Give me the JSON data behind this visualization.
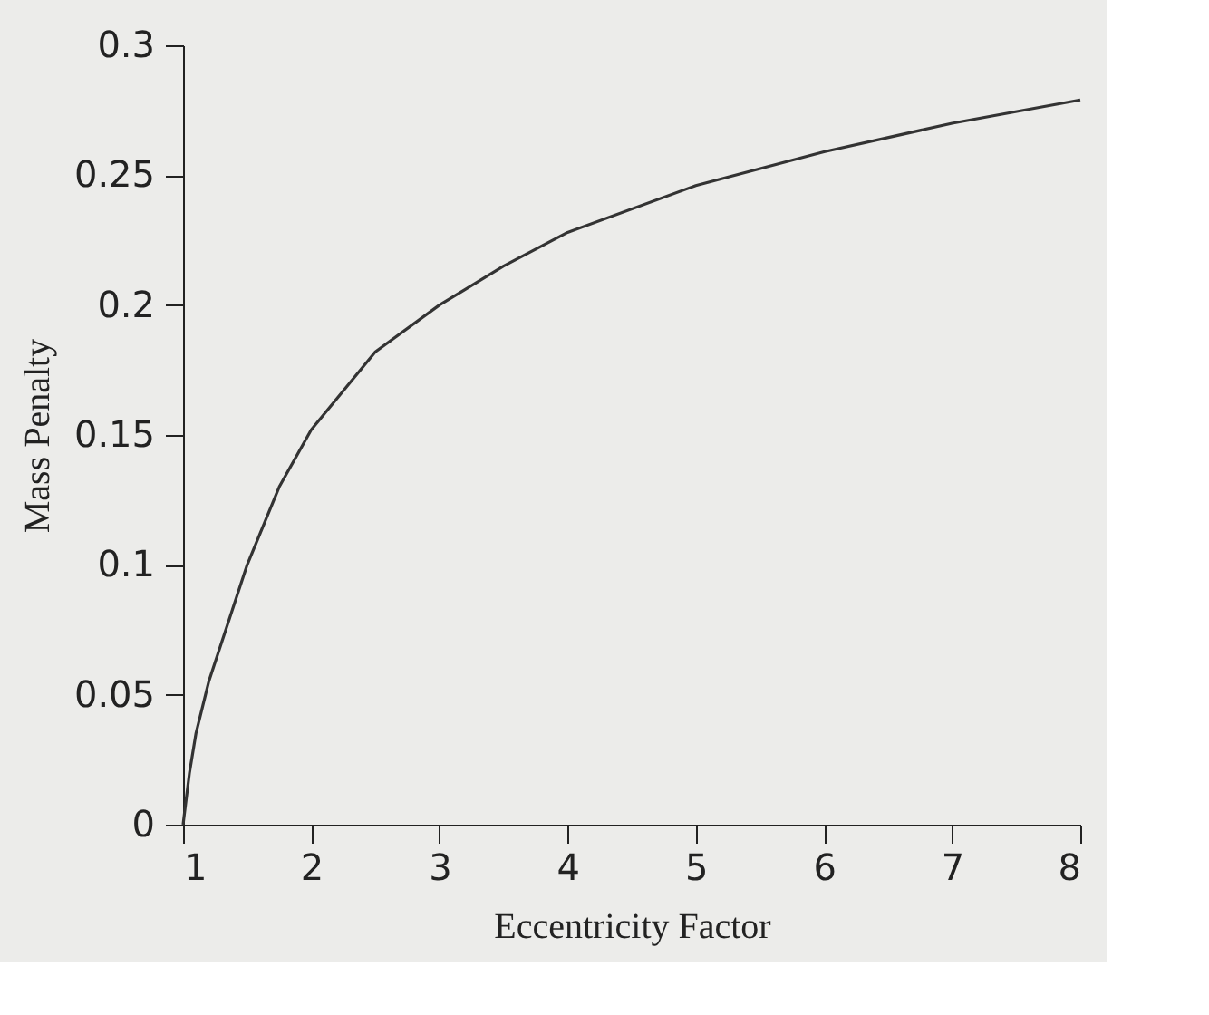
{
  "chart_data": {
    "type": "line",
    "xlabel": "Eccentricity Factor",
    "ylabel": "Mass Penalty",
    "x": [
      1,
      1.05,
      1.1,
      1.2,
      1.3,
      1.5,
      1.75,
      2,
      2.5,
      3,
      3.5,
      4,
      5,
      6,
      7,
      8
    ],
    "series": [
      {
        "color": "#333333",
        "values": [
          0,
          0.02,
          0.035,
          0.055,
          0.07,
          0.1,
          0.13,
          0.152,
          0.182,
          0.2,
          0.215,
          0.228,
          0.246,
          0.259,
          0.27,
          0.279
        ]
      }
    ],
    "xlim": [
      1,
      8
    ],
    "xticks": [
      1,
      2,
      3,
      4,
      5,
      6,
      7,
      8
    ],
    "ylim": [
      0,
      0.3
    ],
    "yticks": [
      0,
      0.05,
      0.1,
      0.15,
      0.2,
      0.25,
      0.3
    ],
    "grid": false,
    "marker": "none",
    "line_style": "solid"
  }
}
